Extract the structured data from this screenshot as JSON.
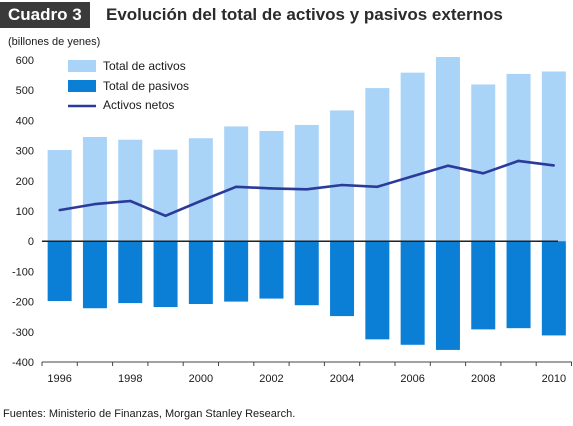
{
  "header": {
    "badge": "Cuadro 3",
    "title": "Evolución del total de activos y pasivos externos"
  },
  "source": "Fuentes: Ministerio de Finanzas, Morgan Stanley Research.",
  "colors": {
    "assets": "#a9d3f7",
    "liabilities": "#0b7fd6",
    "net": "#2b3b9a",
    "zero_line": "#222222"
  },
  "chart_data": {
    "type": "bar",
    "title": "Evolución del total de activos y pasivos externos",
    "ylabel": "(billones de yenes)",
    "xlabel": "",
    "ylim": [
      -400,
      600
    ],
    "yticks": [
      -400,
      -300,
      -200,
      -100,
      0,
      100,
      200,
      300,
      400,
      500,
      600
    ],
    "x": [
      1996,
      1997,
      1998,
      1999,
      2000,
      2001,
      2002,
      2003,
      2004,
      2005,
      2006,
      2007,
      2008,
      2009,
      2010
    ],
    "xtick_labels": [
      "1996",
      "1998",
      "2000",
      "2002",
      "2004",
      "2006",
      "2008",
      "2010"
    ],
    "xtick_values": [
      1996,
      1998,
      2000,
      2002,
      2004,
      2006,
      2008,
      2010
    ],
    "grid": false,
    "legend_position": "top-left",
    "series": [
      {
        "name": "Total de activos",
        "type": "bar",
        "values": [
          302,
          345,
          336,
          303,
          341,
          380,
          365,
          385,
          433,
          507,
          558,
          610,
          519,
          554,
          562
        ]
      },
      {
        "name": "Total de pasivos",
        "type": "bar",
        "values": [
          -198,
          -222,
          -205,
          -218,
          -208,
          -200,
          -190,
          -212,
          -248,
          -325,
          -343,
          -360,
          -292,
          -288,
          -312
        ]
      },
      {
        "name": "Activos netos",
        "type": "line",
        "values": [
          103,
          123,
          133,
          84,
          133,
          180,
          175,
          172,
          186,
          180,
          215,
          250,
          225,
          266,
          251
        ]
      }
    ]
  }
}
